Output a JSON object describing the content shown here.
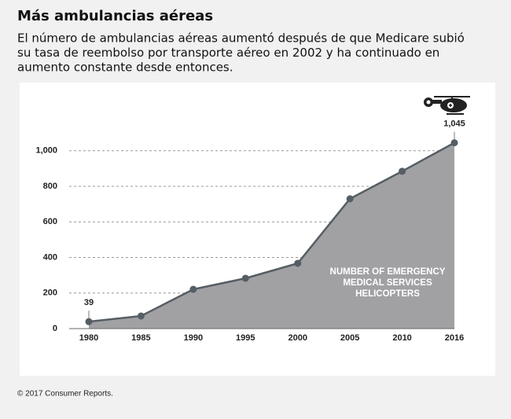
{
  "chart_data": {
    "type": "area",
    "title": "Más ambulancias aéreas",
    "subtitle": [
      "El número de ambulancias aéreas aumentó después de que Medicare subió",
      "su tasa de reembolso por transporte aéreo en 2002 y ha continuado en",
      "aumento constante desde entonces."
    ],
    "categories": [
      "1980",
      "1985",
      "1990",
      "1995",
      "2000",
      "2005",
      "2010",
      "2016"
    ],
    "values": [
      39,
      71,
      221,
      283,
      367,
      730,
      885,
      1045
    ],
    "value_labels": [
      "39",
      null,
      null,
      null,
      null,
      null,
      null,
      "1,045"
    ],
    "annotation": [
      "NUMBER OF EMERGENCY",
      "MEDICAL SERVICES",
      "HELICOPTERS"
    ],
    "ylim": [
      0,
      1100
    ],
    "yticks": [
      0,
      200,
      400,
      600,
      800,
      {
        "value": 1000,
        "label": "1,000"
      }
    ],
    "grid": true,
    "color": "#a1a1a4",
    "line_color": "#555e64",
    "source": "© 2017 Consumer Reports."
  }
}
